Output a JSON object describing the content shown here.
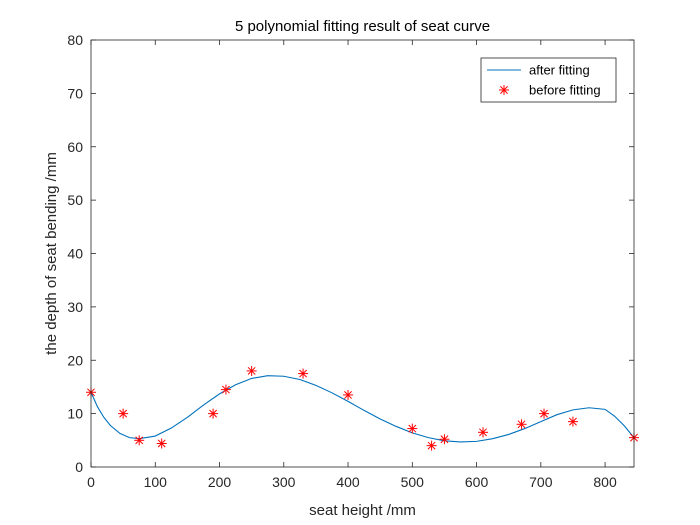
{
  "chart_data": {
    "type": "line",
    "title": "5 polynomial fitting result of seat curve",
    "xlabel": "seat height  /mm",
    "ylabel": "the depth of seat bending  /mm",
    "xlim": [
      0,
      845
    ],
    "ylim": [
      0,
      80
    ],
    "xticks": [
      0,
      100,
      200,
      300,
      400,
      500,
      600,
      700,
      800
    ],
    "yticks": [
      0,
      10,
      20,
      30,
      40,
      50,
      60,
      70,
      80
    ],
    "grid": false,
    "legend_position": "top-right",
    "series": [
      {
        "name": "after fitting",
        "kind": "line",
        "color": "#0072BD",
        "x": [
          0,
          10,
          20,
          30,
          45,
          60,
          75,
          100,
          125,
          150,
          175,
          200,
          225,
          250,
          275,
          300,
          325,
          350,
          375,
          400,
          425,
          450,
          475,
          500,
          525,
          550,
          575,
          600,
          625,
          650,
          675,
          700,
          725,
          750,
          775,
          800,
          815,
          830,
          845
        ],
        "y": [
          14.0,
          11.3,
          9.3,
          7.8,
          6.3,
          5.5,
          5.3,
          5.8,
          7.3,
          9.3,
          11.6,
          13.7,
          15.4,
          16.6,
          17.1,
          17.0,
          16.4,
          15.3,
          13.9,
          12.3,
          10.6,
          9.0,
          7.6,
          6.4,
          5.5,
          4.9,
          4.7,
          4.8,
          5.3,
          6.1,
          7.2,
          8.5,
          9.8,
          10.7,
          11.1,
          10.8,
          9.5,
          7.7,
          5.5
        ]
      },
      {
        "name": "before fitting",
        "kind": "scatter",
        "marker": "asterisk",
        "color": "#FF0000",
        "x": [
          0,
          50,
          75,
          110,
          190,
          210,
          250,
          330,
          400,
          500,
          530,
          550,
          610,
          670,
          705,
          750,
          845
        ],
        "y": [
          14,
          10,
          5,
          4.4,
          10,
          14.5,
          18,
          17.5,
          13.5,
          7.2,
          4,
          5.2,
          6.5,
          8,
          10,
          8.5,
          5.5
        ]
      }
    ]
  }
}
